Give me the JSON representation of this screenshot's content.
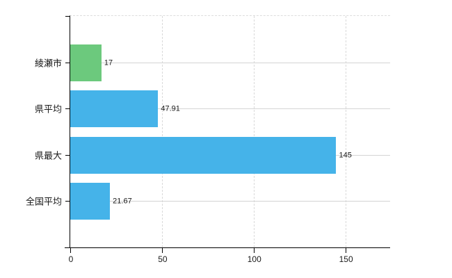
{
  "chart_data": {
    "type": "bar",
    "orientation": "horizontal",
    "title": "",
    "xlabel": "",
    "ylabel": "",
    "categories": [
      "綾瀬市",
      "県平均",
      "県最大",
      "全国平均"
    ],
    "values": [
      17,
      47.91,
      145,
      21.67
    ],
    "value_labels": [
      "17",
      "47.91",
      "145",
      "21.67"
    ],
    "bar_colors": [
      "#6cc97d",
      "#45b3e9",
      "#45b3e9",
      "#45b3e9"
    ],
    "x_ticks": [
      0,
      50,
      100,
      150
    ],
    "x_tick_labels": [
      "0",
      "50",
      "100",
      "150"
    ],
    "xlim": [
      0,
      174.4
    ],
    "grid": true,
    "legend_position": "none",
    "background_color": "#ffffff",
    "axis_color": "#000000",
    "horizontal_gridline_color": "#d4d4d4",
    "vertical_gridline_color": "#d9d9d9"
  }
}
